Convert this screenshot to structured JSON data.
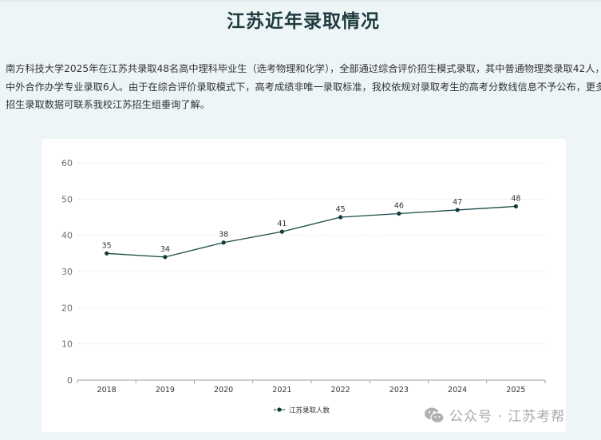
{
  "page": {
    "title": "江苏近年录取情况",
    "paragraph_lines": [
      "南方科技大学2025年在江苏共录取48名高中理科毕业生（选考物理和化学），全部通过综合评价招生模式录取，其中普通物理类录取42人，",
      "中外合作办学专业录取6人。由于在综合评价录取模式下，高考成绩非唯一录取标准，我校依规对录取考生的高考分数线信息不予公布，更多",
      "招生录取数据可联系我校江苏招生组垂询了解。"
    ]
  },
  "watermark": {
    "icon": "wechat-icon",
    "text": "公众号 · 江苏考帮"
  },
  "colors": {
    "line": "#1a4a47",
    "point": "#0f3d3a",
    "background": "#edf5f6",
    "card": "#ffffff",
    "title": "#1e3b3f"
  },
  "chart_data": {
    "type": "line",
    "title": "",
    "xlabel": "",
    "ylabel": "",
    "categories": [
      "2018",
      "2019",
      "2020",
      "2021",
      "2022",
      "2023",
      "2024",
      "2025"
    ],
    "series": [
      {
        "name": "江苏录取人数",
        "values": [
          35,
          34,
          38,
          41,
          45,
          46,
          47,
          48
        ]
      }
    ],
    "yticks": [
      0,
      10,
      20,
      30,
      40,
      50,
      60
    ],
    "ylim": [
      0,
      60
    ],
    "grid": true,
    "data_labels": true,
    "legend_position": "bottom"
  }
}
